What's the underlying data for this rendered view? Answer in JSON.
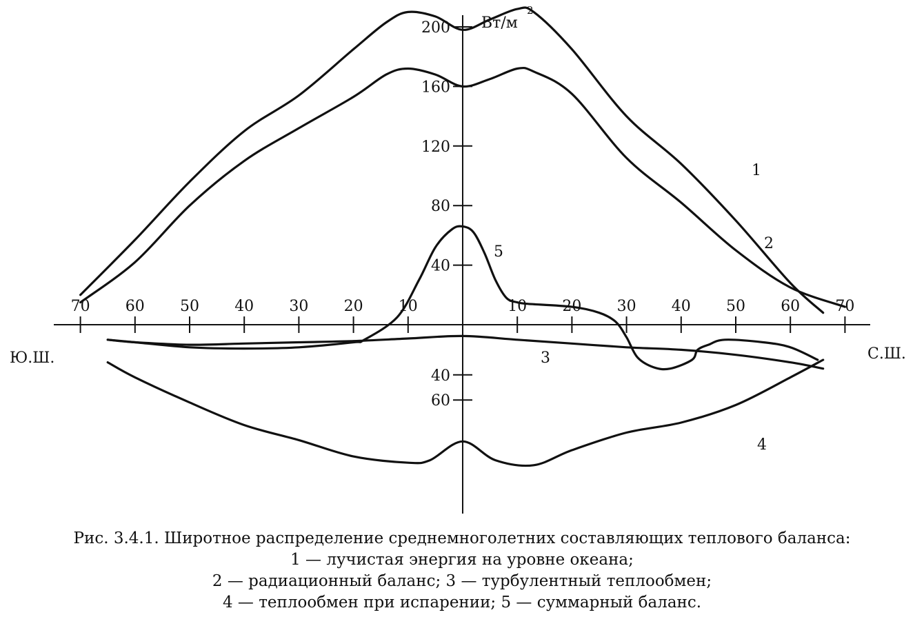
{
  "chart_data": {
    "type": "line",
    "unit_label": "Вт/м",
    "unit_exponent": "2",
    "y_tick_labels_up": [
      "40",
      "80",
      "120",
      "160",
      "200"
    ],
    "y_tick_labels_down": [
      "40",
      "60"
    ],
    "x_tick_labels_south": [
      "70",
      "60",
      "50",
      "40",
      "30",
      "20",
      "10"
    ],
    "x_tick_labels_north": [
      "10",
      "20",
      "30",
      "40",
      "50",
      "60",
      "70"
    ],
    "left_label": "Ю.Ш.",
    "right_label": "С.Ш.",
    "xlim": [
      -70,
      70
    ],
    "series": [
      {
        "name": "1",
        "x": [
          -70,
          -60,
          -50,
          -40,
          -30,
          -20,
          -14,
          -10,
          -5,
          0,
          5,
          10,
          13,
          20,
          30,
          40,
          50,
          60,
          66
        ],
        "y": [
          20,
          57,
          96,
          130,
          154,
          185,
          203,
          210,
          207,
          198,
          205,
          212,
          210,
          185,
          140,
          108,
          70,
          28,
          8
        ]
      },
      {
        "name": "2",
        "x": [
          -70,
          -60,
          -50,
          -40,
          -30,
          -20,
          -14,
          -10,
          -5,
          0,
          5,
          10,
          13,
          20,
          30,
          40,
          50,
          60,
          70
        ],
        "y": [
          15,
          42,
          80,
          110,
          132,
          153,
          168,
          172,
          168,
          160,
          165,
          172,
          170,
          155,
          112,
          82,
          50,
          25,
          12
        ]
      },
      {
        "name": "3",
        "x": [
          -65,
          -60,
          -50,
          -40,
          -30,
          -20,
          -10,
          0,
          10,
          20,
          30,
          40,
          50,
          60,
          66
        ],
        "y": [
          -12,
          -14,
          -16,
          -15,
          -14,
          -13,
          -11,
          -9,
          -12,
          -15,
          -18,
          -20,
          -24,
          -30,
          -35
        ]
      },
      {
        "name": "4",
        "x": [
          -65,
          -60,
          -50,
          -40,
          -30,
          -20,
          -10,
          -6,
          0,
          6,
          13,
          20,
          30,
          40,
          50,
          60,
          66
        ],
        "y": [
          -30,
          -42,
          -62,
          -80,
          -92,
          -105,
          -110,
          -108,
          -93,
          -108,
          -112,
          -100,
          -86,
          -78,
          -64,
          -42,
          -28
        ]
      },
      {
        "name": "5",
        "x": [
          -65,
          -60,
          -50,
          -40,
          -30,
          -20,
          -18,
          -12,
          -8,
          -5,
          -2,
          0,
          2,
          4,
          6,
          8,
          10,
          12,
          20,
          25,
          28,
          30,
          32,
          35,
          38,
          42,
          43,
          45,
          48,
          55,
          60,
          65
        ],
        "y": [
          -12,
          -14,
          -18,
          -19,
          -18,
          -14,
          -12,
          5,
          30,
          52,
          64,
          66,
          62,
          48,
          30,
          18,
          15,
          14,
          12,
          8,
          2,
          -10,
          -26,
          -34,
          -35,
          -28,
          -20,
          -16,
          -12,
          -14,
          -18,
          -28
        ]
      }
    ]
  },
  "caption": {
    "line1": "Рис. 3.4.1. Широтное распределение среднемноголетних составляющих теплового баланса:",
    "line2": "1 — лучистая энергия на уровне океана;",
    "line3": "2 — радиационный баланс; 3 — турбулентный теплообмен;",
    "line4": "4 — теплообмен при испарении; 5 — суммарный баланс."
  }
}
